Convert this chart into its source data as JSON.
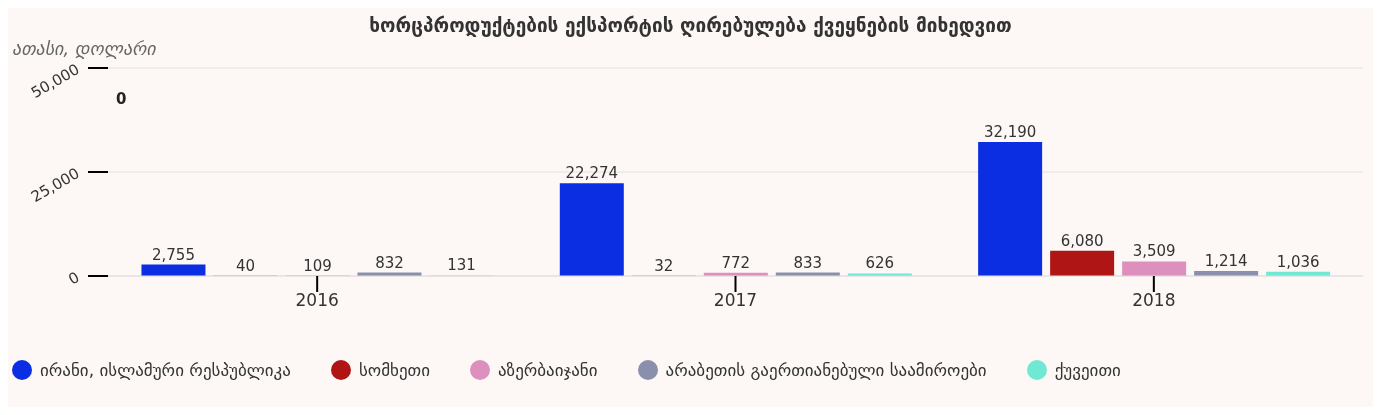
{
  "chart_data": {
    "type": "bar",
    "title": "ხორცპროდუქტების ექსპორტის ღირებულება ქვეყნების მიხედვით",
    "ylabel": "ათასი, დოლარი",
    "categories": [
      "2016",
      "2017",
      "2018"
    ],
    "series": [
      {
        "name": "ირანი, ისლამური რესპუბლიკა",
        "color": "#0b2ee3",
        "values": [
          2755,
          22274,
          32190
        ],
        "value_labels": [
          "2,755",
          "22,274",
          "32,190"
        ]
      },
      {
        "name": "სომხეთი",
        "color": "#b01515",
        "values": [
          40,
          32,
          6080
        ],
        "value_labels": [
          "40",
          "32",
          "6,080"
        ]
      },
      {
        "name": "აზერბაიჯანი",
        "color": "#dd8fbd",
        "values": [
          109,
          772,
          3509
        ],
        "value_labels": [
          "109",
          "772",
          "3,509"
        ]
      },
      {
        "name": "არაბეთის გაერთიანებული საამიროები",
        "color": "#8a8fab",
        "values": [
          832,
          833,
          1214
        ],
        "value_labels": [
          "832",
          "833",
          "1,214"
        ]
      },
      {
        "name": "ქუვეითი",
        "color": "#6fe8d4",
        "values": [
          131,
          626,
          1036
        ],
        "value_labels": [
          "131",
          "626",
          "1,036"
        ]
      }
    ],
    "ylim": [
      0,
      50000
    ],
    "yticks": [
      0,
      {
        "value": 25000,
        "label": "25,000"
      },
      {
        "value": 50000,
        "label": "50,000"
      }
    ],
    "grid": "y",
    "legend": "bottom",
    "annotations": [
      "0"
    ]
  }
}
